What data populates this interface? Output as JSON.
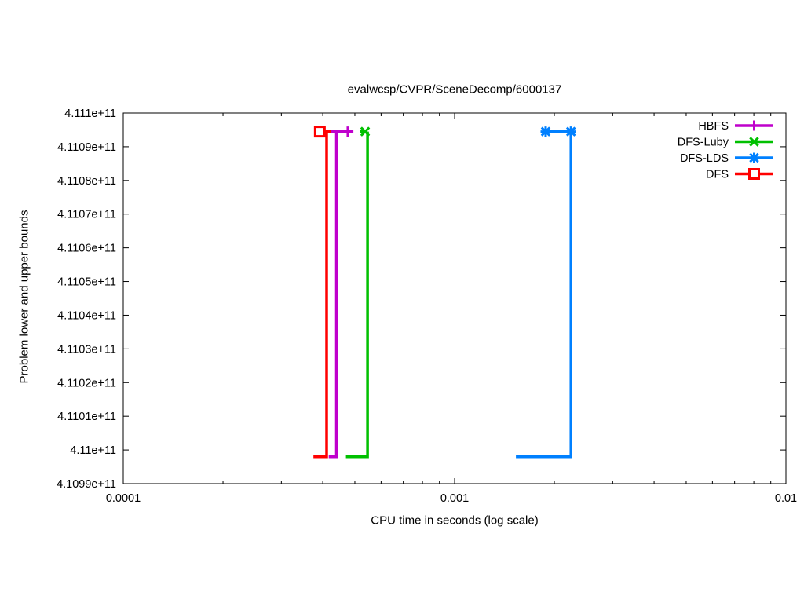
{
  "chart_data": {
    "type": "line",
    "title": "evalwcsp/CVPR/SceneDecomp/6000137",
    "grid": false,
    "legend_position": "top-right",
    "x_axis": {
      "label": "CPU time in seconds (log scale)",
      "scale": "log",
      "min": 0.0001,
      "max": 0.01,
      "tick_values": [
        0.0001,
        0.001,
        0.01
      ],
      "tick_labels": [
        "0.0001",
        "0.001",
        "0.01"
      ]
    },
    "y_axis": {
      "label": "Problem lower and upper bounds",
      "scale": "linear",
      "min": 410990000000,
      "max": 411100000000,
      "tick_values": [
        410990000000,
        411000000000,
        411010000000,
        411020000000,
        411030000000,
        411040000000,
        411050000000,
        411060000000,
        411070000000,
        411080000000,
        411090000000,
        411100000000
      ],
      "tick_labels": [
        "4.1099e+11",
        "4.11e+11",
        "4.1101e+11",
        "4.1102e+11",
        "4.1103e+11",
        "4.1104e+11",
        "4.1105e+11",
        "4.1106e+11",
        "4.1107e+11",
        "4.1108e+11",
        "4.1109e+11",
        "4.111e+11"
      ]
    },
    "upper_bound_value": 411094500000,
    "lower_bound_value": 410998000000,
    "series": [
      {
        "name": "HBFS",
        "color": "#bf00cc",
        "marker": "plus",
        "segments": [
          [
            [
              0.000413,
              411094500000
            ],
            [
              0.000495,
              411094500000
            ]
          ],
          [
            [
              0.000417,
              410998000000
            ],
            [
              0.00044,
              410998000000
            ],
            [
              0.00044,
              411094500000
            ]
          ]
        ],
        "marker_points": [
          [
            0.000476,
            411094500000
          ]
        ]
      },
      {
        "name": "DFS-Luby",
        "color": "#00c000",
        "marker": "cross",
        "segments": [
          [
            [
              0.000517,
              411094500000
            ],
            [
              0.000546,
              411094500000
            ]
          ],
          [
            [
              0.00047,
              410998000000
            ],
            [
              0.000546,
              410998000000
            ],
            [
              0.000546,
              411094500000
            ]
          ]
        ],
        "marker_points": [
          [
            0.000537,
            411094500000
          ]
        ]
      },
      {
        "name": "DFS-LDS",
        "color": "#0080ff",
        "marker": "star",
        "segments": [
          [
            [
              0.001883,
              411094500000
            ],
            [
              0.002245,
              411094500000
            ]
          ],
          [
            [
              0.001531,
              410998000000
            ],
            [
              0.002245,
              410998000000
            ],
            [
              0.002245,
              411094500000
            ]
          ]
        ],
        "marker_points": [
          [
            0.001883,
            411094500000
          ],
          [
            0.002245,
            411094500000
          ]
        ]
      },
      {
        "name": "DFS",
        "color": "#ff0000",
        "marker": "square",
        "segments": [
          [
            [
              0.000379,
              411094500000
            ],
            [
              0.000423,
              411094500000
            ]
          ],
          [
            [
              0.000375,
              410998000000
            ],
            [
              0.000411,
              410998000000
            ],
            [
              0.000411,
              411094500000
            ]
          ]
        ],
        "marker_points": [
          [
            0.000392,
            411094500000
          ]
        ]
      }
    ]
  }
}
